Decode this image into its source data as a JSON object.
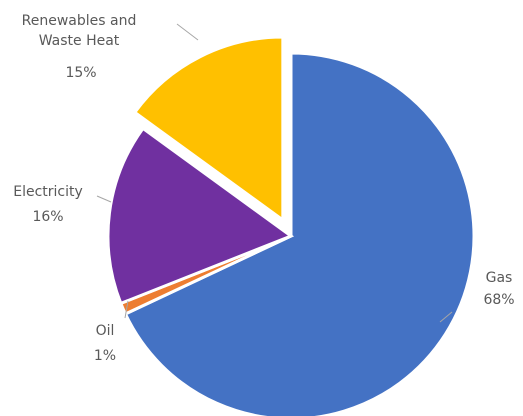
{
  "chart_data": {
    "type": "pie",
    "start_angle_deg": 0,
    "direction": "clockwise",
    "exploded_slices": [
      "Renewables and Waste Heat"
    ],
    "slices": [
      {
        "name": "Gas",
        "value": 68,
        "label": "68%",
        "color": "#4472c4"
      },
      {
        "name": "Oil",
        "value": 1,
        "label": "1%",
        "color": "#ed7d31"
      },
      {
        "name": "Electricity",
        "value": 16,
        "label": "16%",
        "color": "#7030a0"
      },
      {
        "name": "Renewables and Waste Heat",
        "value": 15,
        "label": "15%",
        "color": "#ffc000"
      }
    ]
  }
}
